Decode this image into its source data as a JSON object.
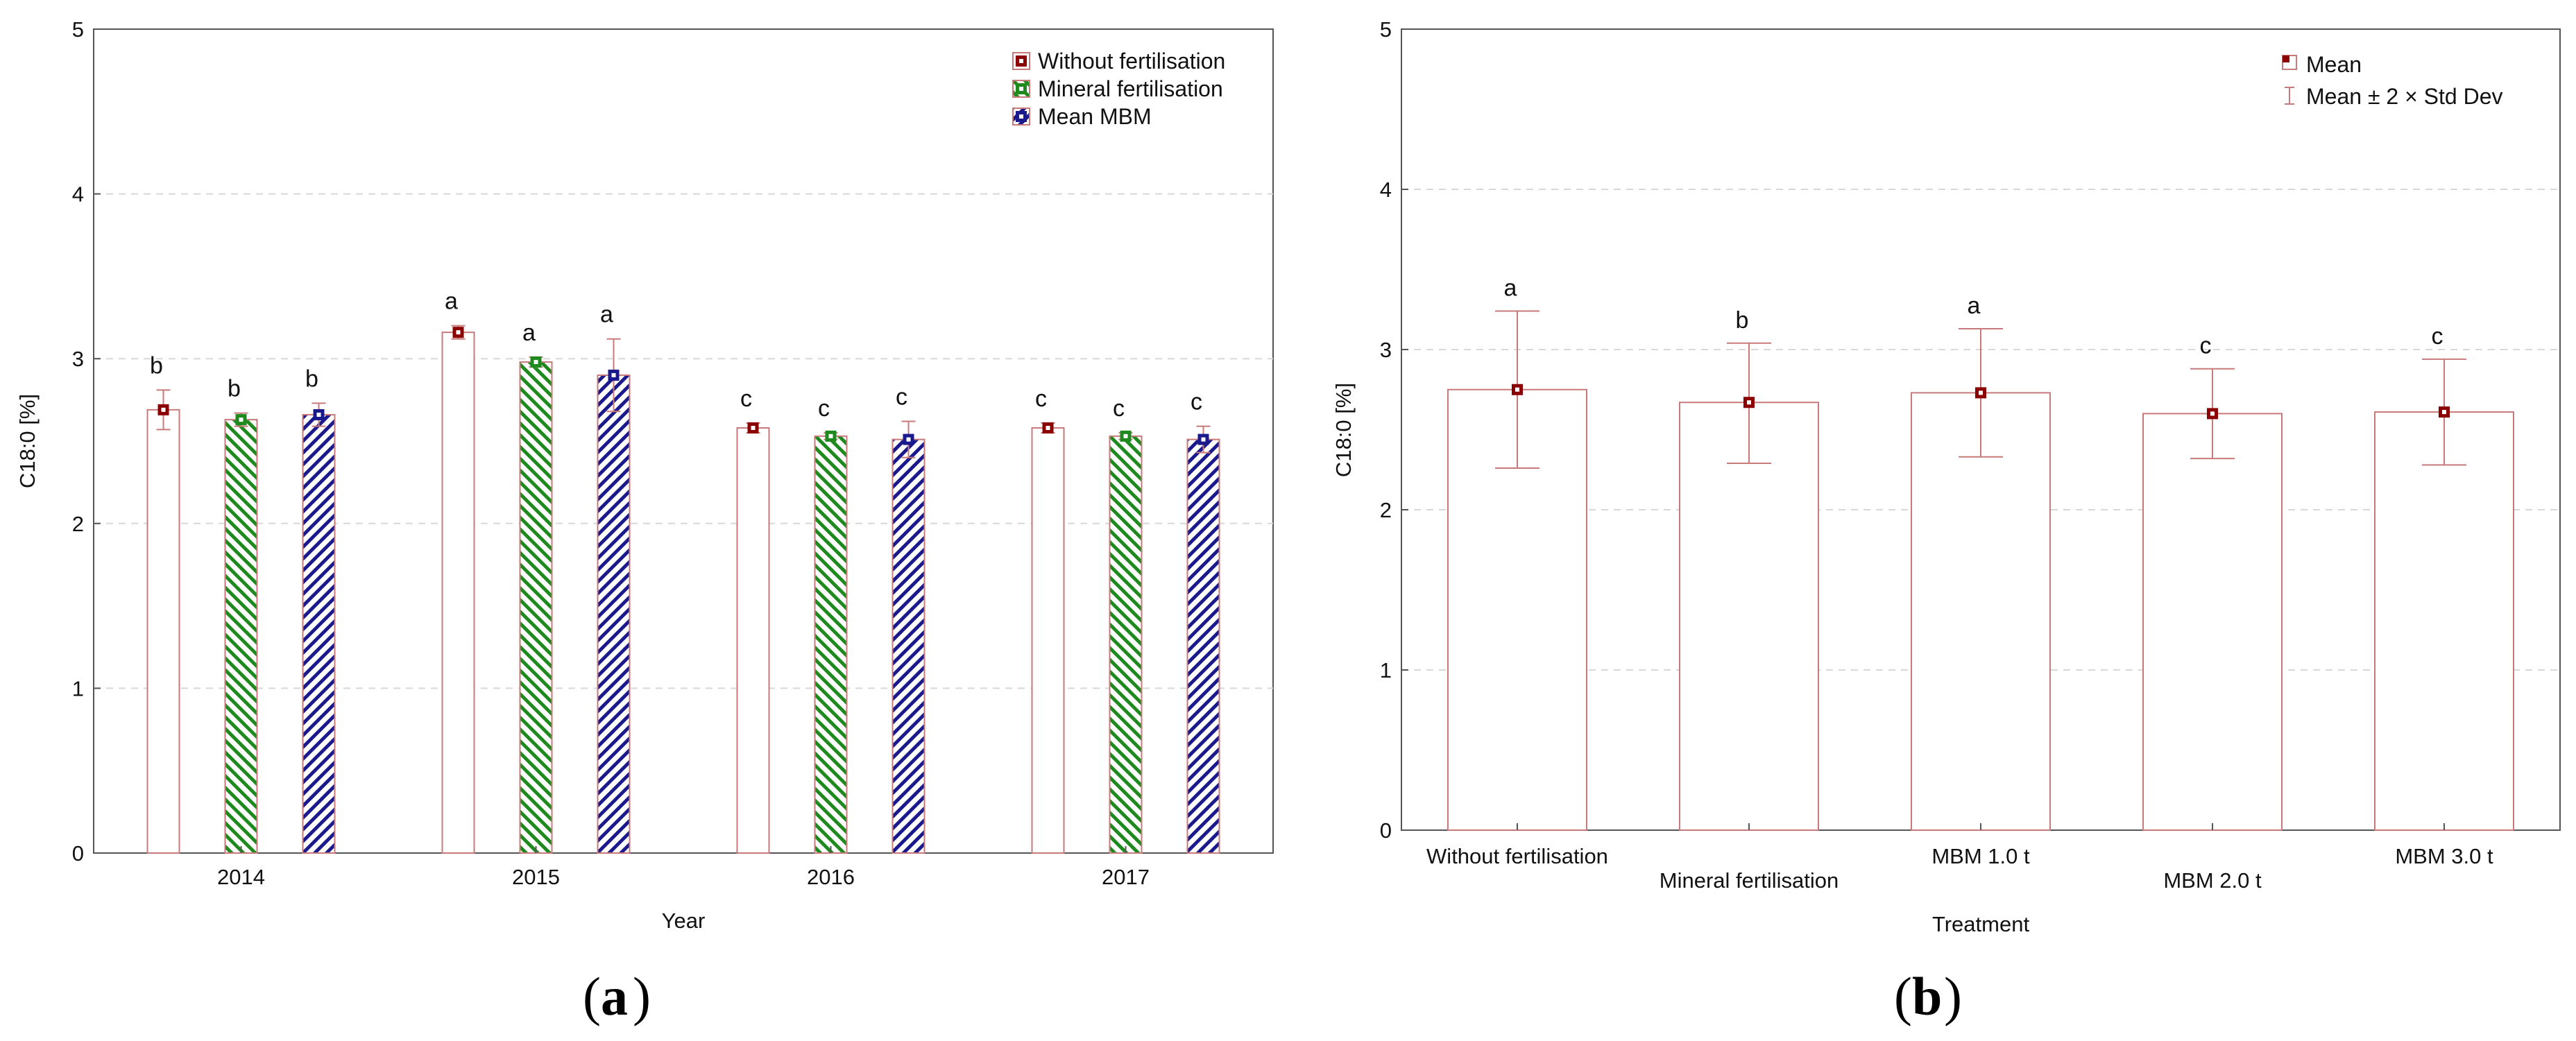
{
  "colors": {
    "without": "#8b0000",
    "mineral": "#1e8a1e",
    "mbm": "#1a1a8c",
    "bar_outline": "#c87a7a",
    "axis": "#555555",
    "grid": "#d8d8d8"
  },
  "chart_data": [
    {
      "panel": "(a)",
      "panel_letter": "a",
      "type": "bar",
      "xlabel": "Year",
      "ylabel": "C18:0 [%]",
      "ylim": [
        0,
        5
      ],
      "yticks": [
        "0",
        "1",
        "2",
        "3",
        "4",
        "5"
      ],
      "categories": [
        "2014",
        "2015",
        "2016",
        "2017"
      ],
      "grid": true,
      "legend_position": "top-right",
      "series": [
        {
          "name": "Without fertilisation",
          "values": [
            2.69,
            3.16,
            2.58,
            2.58
          ],
          "err": [
            0.12,
            0.04,
            0.03,
            0.03
          ],
          "letters": [
            "b",
            "a",
            "c",
            "c"
          ]
        },
        {
          "name": "Mineral fertilisation",
          "values": [
            2.63,
            2.98,
            2.53,
            2.53
          ],
          "err": [
            0.04,
            0.03,
            0.02,
            0.02
          ],
          "letters": [
            "b",
            "a",
            "c",
            "c"
          ]
        },
        {
          "name": "Mean MBM",
          "values": [
            2.66,
            2.9,
            2.51,
            2.51
          ],
          "err": [
            0.07,
            0.22,
            0.11,
            0.08
          ],
          "letters": [
            "b",
            "a",
            "c",
            "c"
          ]
        }
      ]
    },
    {
      "panel": "(b)",
      "panel_letter": "b",
      "type": "bar",
      "xlabel": "Treatment",
      "ylabel": "C18:0 [%]",
      "ylim": [
        0,
        5
      ],
      "yticks": [
        "0",
        "1",
        "2",
        "3",
        "4",
        "5"
      ],
      "categories": [
        "Without fertilisation",
        "Mineral fertilisation",
        "MBM 1.0 t",
        "MBM 2.0 t",
        "MBM 3.0 t"
      ],
      "grid": true,
      "legend_position": "top-right",
      "legend": [
        "Mean",
        "Mean ± 2 × Std Dev"
      ],
      "series": [
        {
          "name": "Mean",
          "values": [
            2.75,
            2.67,
            2.73,
            2.6,
            2.61
          ],
          "low": [
            2.26,
            2.29,
            2.33,
            2.32,
            2.28
          ],
          "high": [
            3.24,
            3.04,
            3.13,
            2.88,
            2.94
          ],
          "letters": [
            "a",
            "b",
            "a",
            "c",
            "c"
          ]
        }
      ]
    }
  ]
}
